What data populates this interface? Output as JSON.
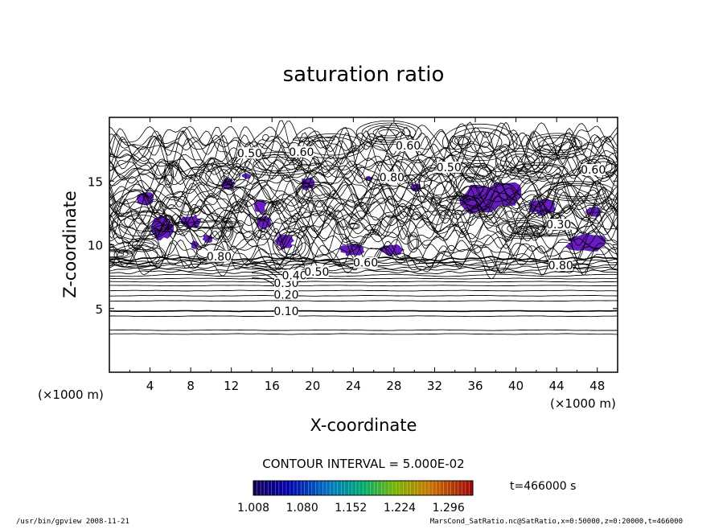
{
  "chart_data": {
    "type": "contour",
    "title": "saturation ratio",
    "xlabel": "X-coordinate",
    "ylabel": "Z-coordinate",
    "x_unit": "(×1000 m)",
    "z_unit": "(×1000 m)",
    "xlim": [
      0,
      50
    ],
    "ylim": [
      0,
      20
    ],
    "x_ticks": [
      4,
      8,
      12,
      16,
      20,
      24,
      28,
      32,
      36,
      40,
      44,
      48
    ],
    "y_ticks": [
      5,
      10,
      15
    ],
    "contour_interval_text": "CONTOUR INTERVAL = 5.000E-02",
    "contour_labels": [
      {
        "text": "0.10",
        "x": 17.4,
        "z": 4.8
      },
      {
        "text": "0.20",
        "x": 17.4,
        "z": 6.1
      },
      {
        "text": "0.30",
        "x": 17.4,
        "z": 7.0
      },
      {
        "text": "0.40",
        "x": 18.2,
        "z": 7.6
      },
      {
        "text": "0.50",
        "x": 20.4,
        "z": 7.9
      },
      {
        "text": "0.60",
        "x": 25.2,
        "z": 8.6
      },
      {
        "text": "0.80",
        "x": 10.8,
        "z": 9.1
      },
      {
        "text": "0.80",
        "x": 44.4,
        "z": 8.4
      },
      {
        "text": "0.50",
        "x": 13.8,
        "z": 17.2
      },
      {
        "text": "0.60",
        "x": 18.9,
        "z": 17.3
      },
      {
        "text": "0.60",
        "x": 29.4,
        "z": 17.8
      },
      {
        "text": "0.50",
        "x": 33.4,
        "z": 16.1
      },
      {
        "text": "0.80",
        "x": 27.8,
        "z": 15.3
      },
      {
        "text": "0.30",
        "x": 44.2,
        "z": 11.6
      },
      {
        "text": "0.60",
        "x": 47.6,
        "z": 15.9
      }
    ],
    "supersaturated_regions_note_free": [],
    "colorbar": {
      "min": 1.008,
      "max": 1.332,
      "tick_labels": [
        "1.008",
        "1.080",
        "1.152",
        "1.224",
        "1.296"
      ]
    },
    "time_text": "t=466000 s"
  },
  "footer": {
    "left": "/usr/bin/gpview   2008-11-21",
    "right": "MarsCond_SatRatio.nc@SatRatio,x=0:50000,z=0:20000,t=466000"
  },
  "colors": {
    "fill": "#6a1bc4",
    "fill_dark": "#3a2aa0",
    "line": "#000000"
  }
}
